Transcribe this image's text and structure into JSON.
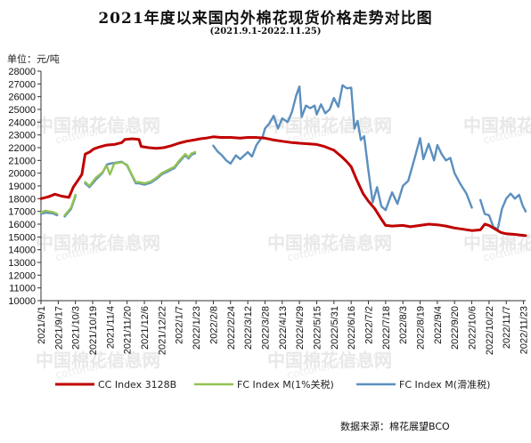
{
  "title": "2021年度以来国内外棉花现货价格走势对比图",
  "subtitle": "(2021.9.1-2022.11.25)",
  "unit_label": "单位：元/吨",
  "source": "数据来源：棉花展望BCO",
  "watermark": {
    "cn": "中国棉花信息网",
    "url": "cottonchina.org.cn"
  },
  "chart_data": {
    "type": "line",
    "ylim": [
      10000,
      28000
    ],
    "y_ticks": [
      10000,
      11000,
      12000,
      13000,
      14000,
      15000,
      16000,
      17000,
      18000,
      19000,
      20000,
      21000,
      22000,
      23000,
      24000,
      25000,
      26000,
      27000,
      28000
    ],
    "x_tick_labels": [
      "2021/9/1",
      "2021/9/17",
      "2021/10/3",
      "2021/10/19",
      "2021/11/4",
      "2021/11/20",
      "2021/12/6",
      "2021/12/22",
      "2022/1/7",
      "2022/1/23",
      "2022/2/8",
      "2022/2/24",
      "2022/3/12",
      "2022/3/28",
      "2022/4/13",
      "2022/4/29",
      "2022/5/15",
      "2022/5/31",
      "2022/6/16",
      "2022/7/2",
      "2022/7/18",
      "2022/8/3",
      "2022/8/19",
      "2022/9/4",
      "2022/9/20",
      "2022/10/6",
      "2022/10/22",
      "2022/11/7",
      "2022/11/23"
    ],
    "grid": false,
    "legend_position": "bottom",
    "series": [
      {
        "name": "CC Index 3128B",
        "color": "#c00000",
        "points": [
          [
            "2021/9/1",
            18000
          ],
          [
            "2021/9/8",
            18150
          ],
          [
            "2021/9/14",
            18350
          ],
          [
            "2021/9/20",
            18200
          ],
          [
            "2021/9/27",
            18100
          ],
          [
            "2021/10/1",
            18900
          ],
          [
            "2021/10/5",
            19400
          ],
          [
            "2021/10/9",
            19900
          ],
          [
            "2021/10/12",
            21500
          ],
          [
            "2021/10/16",
            21650
          ],
          [
            "2021/10/20",
            21900
          ],
          [
            "2021/10/25",
            22050
          ],
          [
            "2021/11/1",
            22200
          ],
          [
            "2021/11/8",
            22250
          ],
          [
            "2021/11/15",
            22400
          ],
          [
            "2021/11/18",
            22650
          ],
          [
            "2021/11/25",
            22700
          ],
          [
            "2021/12/1",
            22650
          ],
          [
            "2021/12/3",
            22100
          ],
          [
            "2021/12/10",
            22000
          ],
          [
            "2021/12/17",
            21950
          ],
          [
            "2021/12/24",
            22000
          ],
          [
            "2021/12/31",
            22150
          ],
          [
            "2022/1/7",
            22350
          ],
          [
            "2022/1/14",
            22500
          ],
          [
            "2022/1/21",
            22600
          ],
          [
            "2022/1/27",
            22700
          ],
          [
            "2022/2/1",
            22750
          ],
          [
            "2022/2/8",
            22850
          ],
          [
            "2022/2/15",
            22800
          ],
          [
            "2022/2/24",
            22800
          ],
          [
            "2022/3/5",
            22750
          ],
          [
            "2022/3/12",
            22800
          ],
          [
            "2022/3/19",
            22800
          ],
          [
            "2022/3/28",
            22750
          ],
          [
            "2022/4/5",
            22600
          ],
          [
            "2022/4/13",
            22500
          ],
          [
            "2022/4/22",
            22400
          ],
          [
            "2022/4/29",
            22350
          ],
          [
            "2022/5/8",
            22300
          ],
          [
            "2022/5/15",
            22250
          ],
          [
            "2022/5/22",
            22100
          ],
          [
            "2022/5/31",
            21800
          ],
          [
            "2022/6/7",
            21300
          ],
          [
            "2022/6/12",
            20900
          ],
          [
            "2022/6/16",
            20500
          ],
          [
            "2022/6/21",
            19500
          ],
          [
            "2022/6/27",
            18400
          ],
          [
            "2022/7/2",
            17800
          ],
          [
            "2022/7/8",
            17200
          ],
          [
            "2022/7/14",
            16400
          ],
          [
            "2022/7/18",
            15900
          ],
          [
            "2022/7/24",
            15850
          ],
          [
            "2022/8/3",
            15900
          ],
          [
            "2022/8/10",
            15800
          ],
          [
            "2022/8/19",
            15900
          ],
          [
            "2022/8/27",
            16000
          ],
          [
            "2022/9/4",
            15950
          ],
          [
            "2022/9/12",
            15850
          ],
          [
            "2022/9/20",
            15700
          ],
          [
            "2022/9/28",
            15600
          ],
          [
            "2022/10/6",
            15500
          ],
          [
            "2022/10/14",
            15550
          ],
          [
            "2022/10/18",
            16000
          ],
          [
            "2022/10/22",
            15900
          ],
          [
            "2022/10/27",
            15650
          ],
          [
            "2022/11/2",
            15350
          ],
          [
            "2022/11/7",
            15250
          ],
          [
            "2022/11/15",
            15200
          ],
          [
            "2022/11/20",
            15150
          ],
          [
            "2022/11/25",
            15100
          ]
        ]
      },
      {
        "name": "FC Index M(1%关税)",
        "color": "#92c254",
        "points": [
          [
            "2021/9/1",
            16900
          ],
          [
            "2021/9/5",
            17050
          ],
          [
            "2021/9/12",
            16950
          ],
          [
            "2021/9/16",
            16800
          ],
          [
            "2021/9/19",
            null
          ],
          [
            "2021/9/23",
            16700
          ],
          [
            "2021/9/29",
            17300
          ],
          [
            "2021/10/3",
            18300
          ],
          [
            "2021/10/5",
            null
          ],
          [
            "2021/10/12",
            19300
          ],
          [
            "2021/10/16",
            19000
          ],
          [
            "2021/10/22",
            19650
          ],
          [
            "2021/10/28",
            20050
          ],
          [
            "2021/11/1",
            20600
          ],
          [
            "2021/11/4",
            19900
          ],
          [
            "2021/11/8",
            20750
          ],
          [
            "2021/11/15",
            20850
          ],
          [
            "2021/11/20",
            20650
          ],
          [
            "2021/11/24",
            19950
          ],
          [
            "2021/11/28",
            19300
          ],
          [
            "2021/12/1",
            19300
          ],
          [
            "2021/12/6",
            19200
          ],
          [
            "2021/12/12",
            19350
          ],
          [
            "2021/12/18",
            19700
          ],
          [
            "2021/12/22",
            20000
          ],
          [
            "2021/12/28",
            20250
          ],
          [
            "2022/1/3",
            20500
          ],
          [
            "2022/1/7",
            20950
          ],
          [
            "2022/1/13",
            21500
          ],
          [
            "2022/1/16",
            21250
          ],
          [
            "2022/1/19",
            21550
          ],
          [
            "2022/1/22",
            21650
          ],
          [
            "2022/1/26",
            null
          ]
        ]
      },
      {
        "name": "FC Index M(滑准税)",
        "color": "#5b8fbf",
        "points": [
          [
            "2021/9/1",
            16800
          ],
          [
            "2021/9/5",
            16900
          ],
          [
            "2021/9/12",
            16850
          ],
          [
            "2021/9/16",
            16700
          ],
          [
            "2021/9/19",
            null
          ],
          [
            "2021/9/23",
            16600
          ],
          [
            "2021/9/29",
            17200
          ],
          [
            "2021/10/3",
            18200
          ],
          [
            "2021/10/5",
            null
          ],
          [
            "2021/10/12",
            19200
          ],
          [
            "2021/10/16",
            18900
          ],
          [
            "2021/10/22",
            19500
          ],
          [
            "2021/10/28",
            20000
          ],
          [
            "2021/11/1",
            20650
          ],
          [
            "2021/11/4",
            20750
          ],
          [
            "2021/11/8",
            20800
          ],
          [
            "2021/11/15",
            20900
          ],
          [
            "2021/11/20",
            20600
          ],
          [
            "2021/11/24",
            19900
          ],
          [
            "2021/11/28",
            19200
          ],
          [
            "2021/12/1",
            19200
          ],
          [
            "2021/12/6",
            19100
          ],
          [
            "2021/12/12",
            19250
          ],
          [
            "2021/12/18",
            19600
          ],
          [
            "2021/12/22",
            19900
          ],
          [
            "2021/12/28",
            20150
          ],
          [
            "2022/1/3",
            20400
          ],
          [
            "2022/1/7",
            20850
          ],
          [
            "2022/1/13",
            21400
          ],
          [
            "2022/1/16",
            21150
          ],
          [
            "2022/1/19",
            21450
          ],
          [
            "2022/1/22",
            21550
          ],
          [
            "2022/1/26",
            null
          ],
          [
            "2022/2/8",
            22150
          ],
          [
            "2022/2/12",
            21700
          ],
          [
            "2022/2/16",
            21400
          ],
          [
            "2022/2/20",
            21000
          ],
          [
            "2022/2/24",
            20750
          ],
          [
            "2022/3/1",
            21400
          ],
          [
            "2022/3/5",
            21100
          ],
          [
            "2022/3/12",
            21650
          ],
          [
            "2022/3/16",
            21300
          ],
          [
            "2022/3/20",
            22200
          ],
          [
            "2022/3/26",
            22900
          ],
          [
            "2022/3/28",
            23500
          ],
          [
            "2022/4/1",
            23900
          ],
          [
            "2022/4/5",
            24500
          ],
          [
            "2022/4/9",
            23500
          ],
          [
            "2022/4/13",
            24300
          ],
          [
            "2022/4/18",
            24000
          ],
          [
            "2022/4/22",
            24800
          ],
          [
            "2022/4/26",
            26100
          ],
          [
            "2022/4/29",
            26800
          ],
          [
            "2022/5/1",
            24400
          ],
          [
            "2022/5/5",
            25300
          ],
          [
            "2022/5/9",
            25100
          ],
          [
            "2022/5/13",
            25300
          ],
          [
            "2022/5/15",
            24600
          ],
          [
            "2022/5/19",
            25400
          ],
          [
            "2022/5/23",
            24700
          ],
          [
            "2022/5/27",
            25000
          ],
          [
            "2022/5/31",
            25900
          ],
          [
            "2022/6/4",
            25200
          ],
          [
            "2022/6/8",
            26900
          ],
          [
            "2022/6/12",
            26650
          ],
          [
            "2022/6/16",
            26700
          ],
          [
            "2022/6/19",
            23500
          ],
          [
            "2022/6/22",
            24100
          ],
          [
            "2022/6/25",
            22600
          ],
          [
            "2022/6/28",
            22900
          ],
          [
            "2022/7/2",
            20200
          ],
          [
            "2022/7/6",
            17700
          ],
          [
            "2022/7/10",
            18900
          ],
          [
            "2022/7/14",
            17400
          ],
          [
            "2022/7/18",
            17100
          ],
          [
            "2022/7/24",
            18500
          ],
          [
            "2022/7/29",
            17600
          ],
          [
            "2022/8/3",
            19000
          ],
          [
            "2022/8/8",
            19400
          ],
          [
            "2022/8/14",
            21200
          ],
          [
            "2022/8/19",
            22750
          ],
          [
            "2022/8/22",
            21100
          ],
          [
            "2022/8/27",
            22300
          ],
          [
            "2022/9/1",
            21000
          ],
          [
            "2022/9/4",
            22200
          ],
          [
            "2022/9/8",
            21500
          ],
          [
            "2022/9/12",
            21000
          ],
          [
            "2022/9/16",
            21200
          ],
          [
            "2022/9/20",
            20000
          ],
          [
            "2022/9/25",
            19200
          ],
          [
            "2022/10/1",
            18400
          ],
          [
            "2022/10/6",
            17300
          ],
          [
            "2022/10/9",
            null
          ],
          [
            "2022/10/14",
            17900
          ],
          [
            "2022/10/18",
            16800
          ],
          [
            "2022/10/22",
            16700
          ],
          [
            "2022/10/26",
            15800
          ],
          [
            "2022/10/30",
            15600
          ],
          [
            "2022/11/3",
            17200
          ],
          [
            "2022/11/7",
            18000
          ],
          [
            "2022/11/11",
            18400
          ],
          [
            "2022/11/15",
            18000
          ],
          [
            "2022/11/19",
            18300
          ],
          [
            "2022/11/22",
            17500
          ],
          [
            "2022/11/25",
            17000
          ]
        ]
      }
    ]
  }
}
